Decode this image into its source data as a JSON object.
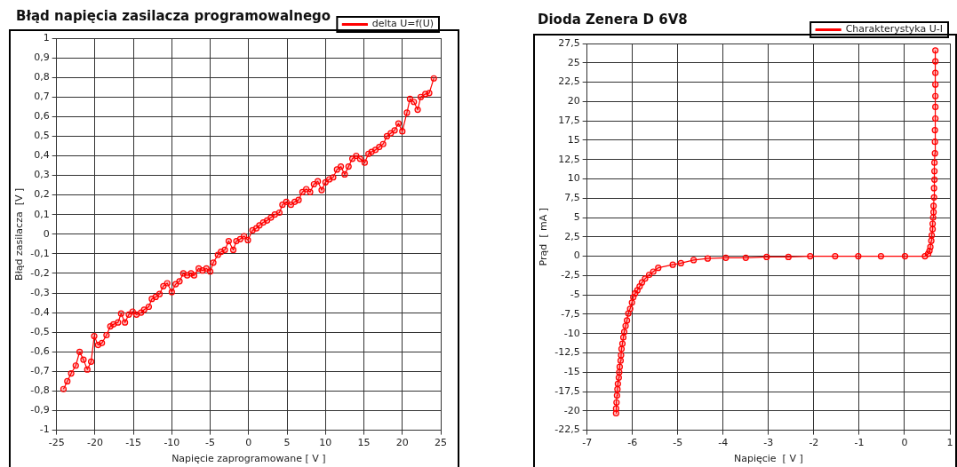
{
  "chart_data": [
    {
      "type": "line",
      "title": "Błąd napięcia zasilacza programowalnego",
      "xlabel": "Napięcie zaprogramowane [ V ]",
      "ylabel": "Błąd zasilacza  [V ]",
      "xlim": [
        -25,
        25
      ],
      "xticks": [
        -25,
        -20,
        -15,
        -10,
        -5,
        0,
        5,
        10,
        15,
        20,
        25
      ],
      "ylim": [
        -1,
        1
      ],
      "yticks": [
        -1,
        {
          "value": -0.9,
          "label": "-0,9"
        },
        {
          "value": -0.8,
          "label": "-0,8"
        },
        {
          "value": -0.7,
          "label": "-0,7"
        },
        {
          "value": -0.6,
          "label": "-0,6"
        },
        {
          "value": -0.5,
          "label": "-0,5"
        },
        {
          "value": -0.4,
          "label": "-0,4"
        },
        {
          "value": -0.3,
          "label": "-0,3"
        },
        {
          "value": -0.2,
          "label": "-0,2"
        },
        {
          "value": -0.1,
          "label": "-0,1"
        },
        0,
        {
          "value": 0.1,
          "label": "0,1"
        },
        {
          "value": 0.2,
          "label": "0,2"
        },
        {
          "value": 0.3,
          "label": "0,3"
        },
        {
          "value": 0.4,
          "label": "0,4"
        },
        {
          "value": 0.5,
          "label": "0,5"
        },
        {
          "value": 0.6,
          "label": "0,6"
        },
        {
          "value": 0.7,
          "label": "0,7"
        },
        {
          "value": 0.8,
          "label": "0,8"
        },
        {
          "value": 0.9,
          "label": "0,9"
        },
        1
      ],
      "grid": true,
      "legend": "top right",
      "marker": "circle",
      "line_style": "solid",
      "series": [
        {
          "name": "delta U=f(U)",
          "color": "#ff0000",
          "x": [
            -24.1,
            -23.6,
            -23.1,
            -22.5,
            -22.0,
            -21.5,
            -21.0,
            -20.5,
            -20.1,
            -19.6,
            -19.1,
            -18.5,
            -18.0,
            -17.6,
            -17.0,
            -16.6,
            -16.1,
            -15.6,
            -15.1,
            -14.6,
            -14.0,
            -13.6,
            -13.0,
            -12.6,
            -12.1,
            -11.6,
            -11.1,
            -10.6,
            -10.0,
            -9.5,
            -9.0,
            -8.5,
            -8.0,
            -7.5,
            -7.1,
            -6.5,
            -6.0,
            -5.5,
            -5.0,
            -4.6,
            -4.0,
            -3.6,
            -3.1,
            -2.6,
            -2.0,
            -1.6,
            -1.1,
            -0.6,
            -0.1,
            0.5,
            1.0,
            1.4,
            1.9,
            2.4,
            2.9,
            3.4,
            4.0,
            4.4,
            4.9,
            5.5,
            6.0,
            6.5,
            7.0,
            7.5,
            8.0,
            8.5,
            9.0,
            9.5,
            10.0,
            10.5,
            11.0,
            11.5,
            12.0,
            12.5,
            13.0,
            13.5,
            14.0,
            14.5,
            15.1,
            15.6,
            16.0,
            16.5,
            17.0,
            17.5,
            18.0,
            18.5,
            19.0,
            19.5,
            20.0,
            20.6,
            21.0,
            21.5,
            22.0,
            22.4,
            23.0,
            23.5,
            24.1
          ],
          "values": [
            -0.79,
            -0.75,
            -0.71,
            -0.67,
            -0.6,
            -0.64,
            -0.69,
            -0.65,
            -0.52,
            -0.565,
            -0.555,
            -0.515,
            -0.47,
            -0.46,
            -0.45,
            -0.405,
            -0.45,
            -0.41,
            -0.395,
            -0.41,
            -0.4,
            -0.385,
            -0.37,
            -0.33,
            -0.32,
            -0.305,
            -0.265,
            -0.25,
            -0.295,
            -0.255,
            -0.24,
            -0.2,
            -0.21,
            -0.2,
            -0.21,
            -0.175,
            -0.185,
            -0.175,
            -0.19,
            -0.145,
            -0.105,
            -0.09,
            -0.08,
            -0.035,
            -0.08,
            -0.035,
            -0.025,
            -0.01,
            -0.03,
            0.02,
            0.03,
            0.045,
            0.06,
            0.07,
            0.085,
            0.1,
            0.11,
            0.15,
            0.165,
            0.15,
            0.165,
            0.175,
            0.215,
            0.23,
            0.215,
            0.255,
            0.27,
            0.225,
            0.265,
            0.28,
            0.29,
            0.33,
            0.345,
            0.305,
            0.345,
            0.385,
            0.4,
            0.385,
            0.365,
            0.41,
            0.42,
            0.43,
            0.445,
            0.46,
            0.5,
            0.515,
            0.53,
            0.565,
            0.525,
            0.62,
            0.69,
            0.675,
            0.635,
            0.7,
            0.715,
            0.72,
            0.795
          ]
        }
      ]
    },
    {
      "type": "line",
      "title": "Dioda Zenera D 6V8",
      "xlabel": "Napięcie  [ V ]",
      "ylabel": "Prąd  [ mA ]",
      "xlim": [
        -7,
        1
      ],
      "xticks": [
        -7,
        -6,
        -5,
        -4,
        -3,
        -2,
        -1,
        0,
        1
      ],
      "ylim": [
        -22.5,
        27.5
      ],
      "yticks": [
        {
          "value": -22.5,
          "label": "-22,5"
        },
        -20,
        {
          "value": -17.5,
          "label": "-17,5"
        },
        -15,
        {
          "value": -12.5,
          "label": "-12,5"
        },
        -10,
        {
          "value": -7.5,
          "label": "-7,5"
        },
        -5,
        {
          "value": -2.5,
          "label": "-2,5"
        },
        0,
        {
          "value": 2.5,
          "label": "2,5"
        },
        5,
        {
          "value": 7.5,
          "label": "7,5"
        },
        10,
        {
          "value": 12.5,
          "label": "12,5"
        },
        15,
        {
          "value": 17.5,
          "label": "17,5"
        },
        20,
        {
          "value": 22.5,
          "label": "22,5"
        },
        25,
        {
          "value": 27.5,
          "label": "27,5"
        }
      ],
      "grid": true,
      "legend": "top right",
      "marker": "circle",
      "line_style": "solid",
      "series": [
        {
          "name": "Charakterystyka U-I",
          "color": "#ff0000",
          "x": [
            -6.36,
            -6.36,
            -6.35,
            -6.34,
            -6.33,
            -6.32,
            -6.3,
            -6.29,
            -6.28,
            -6.26,
            -6.25,
            -6.24,
            -6.22,
            -6.2,
            -6.18,
            -6.15,
            -6.12,
            -6.09,
            -6.05,
            -6.01,
            -5.98,
            -5.94,
            -5.89,
            -5.84,
            -5.79,
            -5.72,
            -5.63,
            -5.54,
            -5.43,
            -5.11,
            -4.93,
            -4.65,
            -4.34,
            -3.94,
            -3.5,
            -3.04,
            -2.56,
            -2.08,
            -1.53,
            -1.02,
            -0.52,
            0.01,
            0.45,
            0.52,
            0.55,
            0.57,
            0.59,
            0.6,
            0.62,
            0.62,
            0.63,
            0.64,
            0.64,
            0.65,
            0.65,
            0.66,
            0.66,
            0.66,
            0.67,
            0.67,
            0.67,
            0.68,
            0.68,
            0.68,
            0.68,
            0.68,
            0.68,
            0.68
          ],
          "values": [
            -20.3,
            -19.7,
            -18.9,
            -18.0,
            -17.2,
            -16.5,
            -15.7,
            -15.0,
            -14.3,
            -13.5,
            -12.8,
            -12.0,
            -11.3,
            -10.5,
            -9.8,
            -9.0,
            -8.3,
            -7.4,
            -6.8,
            -6.0,
            -5.3,
            -4.8,
            -4.4,
            -3.9,
            -3.4,
            -2.9,
            -2.4,
            -2.0,
            -1.5,
            -1.1,
            -0.9,
            -0.5,
            -0.3,
            -0.2,
            -0.2,
            -0.1,
            -0.1,
            0,
            0,
            0,
            0,
            0,
            0,
            0.3,
            0.7,
            1.2,
            2.0,
            2.7,
            3.5,
            4.2,
            5.0,
            5.7,
            6.5,
            7.6,
            8.8,
            9.9,
            11.0,
            12.1,
            13.3,
            14.8,
            16.3,
            17.8,
            19.3,
            20.7,
            22.2,
            23.7,
            25.2,
            26.6
          ]
        }
      ]
    }
  ]
}
